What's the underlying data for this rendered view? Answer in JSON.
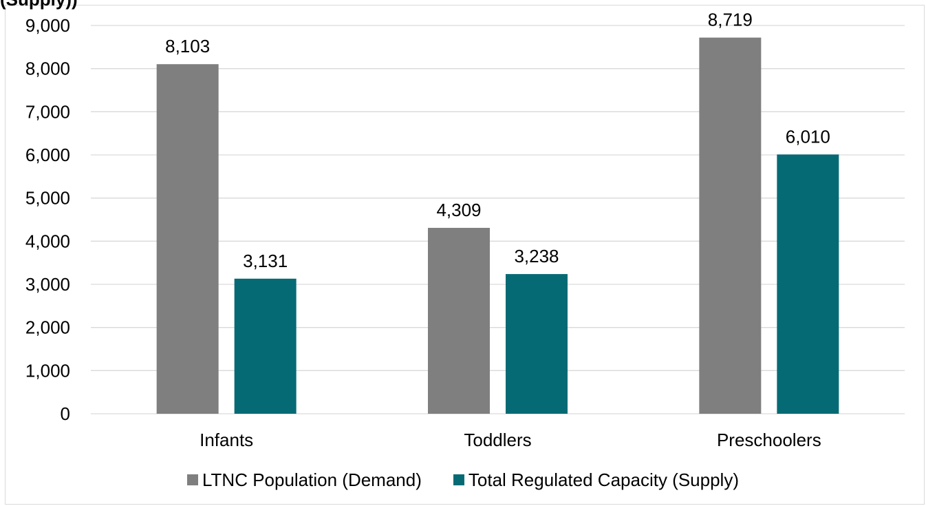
{
  "chart_title": "(Supply))",
  "colors": {
    "demand": "#7f7f7f",
    "supply": "#066a75",
    "grid": "#d9d9d9"
  },
  "chart_data": {
    "type": "bar",
    "title": "(Supply))",
    "categories": [
      "Infants",
      "Toddlers",
      "Preschoolers"
    ],
    "series": [
      {
        "name": "LTNC Population (Demand)",
        "values": [
          8103,
          4309,
          8719
        ],
        "labels": [
          "8,103",
          "4,309",
          "8,719"
        ]
      },
      {
        "name": "Total Regulated Capacity (Supply)",
        "values": [
          3131,
          3238,
          6010
        ],
        "labels": [
          "3,131",
          "3,238",
          "6,010"
        ]
      }
    ],
    "ylim": [
      0,
      9000
    ],
    "yticks": [
      "0",
      "1,000",
      "2,000",
      "3,000",
      "4,000",
      "5,000",
      "6,000",
      "7,000",
      "8,000",
      "9,000"
    ],
    "ytick_values": [
      0,
      1000,
      2000,
      3000,
      4000,
      5000,
      6000,
      7000,
      8000,
      9000
    ],
    "grid": true,
    "legend": "bottom",
    "xlabel": "",
    "ylabel": ""
  }
}
